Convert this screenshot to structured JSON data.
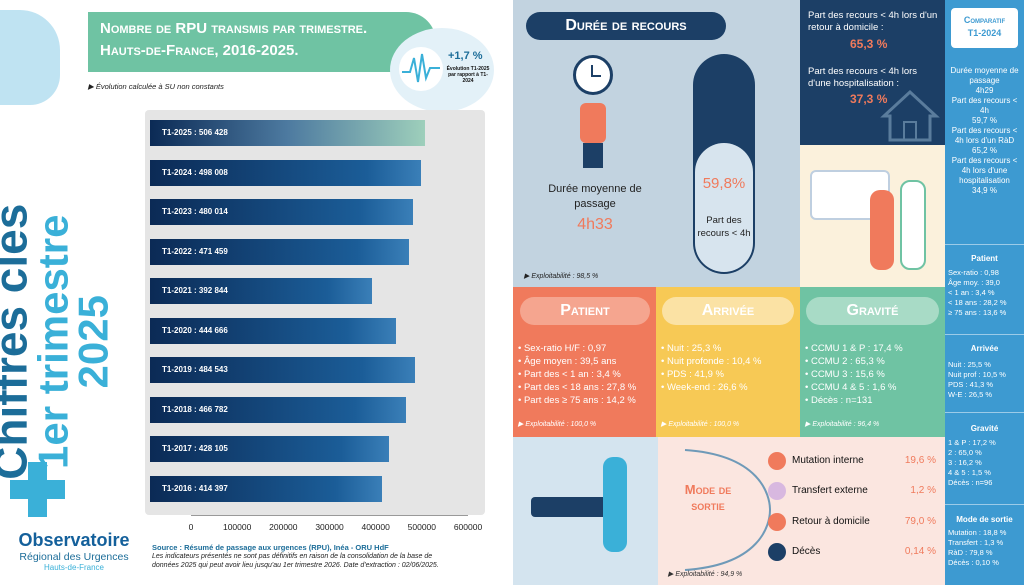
{
  "vertical_title": {
    "line1": "Chiffres clés",
    "line2": "1er trimestre",
    "line3": "2025"
  },
  "banner": {
    "line1": "Nombre de RPU transmis par trimestre.",
    "line2": "Hauts-de-France, 2016-2025."
  },
  "evolution": {
    "value": "+1,7 %",
    "label": "Évolution T1-2025 par rapport à T1-2024"
  },
  "note_su": "Évolution calculée à SU non constants",
  "chart_data": {
    "type": "bar",
    "orientation": "horizontal",
    "categories": [
      "T1-2025",
      "T1-2024",
      "T1-2023",
      "T1-2022",
      "T1-2021",
      "T1-2020",
      "T1-2019",
      "T1-2018",
      "T1-2017",
      "T1-2016"
    ],
    "labels": [
      "T1-2025 : 506 428",
      "T1-2024 : 498 008",
      "T1-2023 : 480 014",
      "T1-2022 : 471 459",
      "T1-2021 : 392 844",
      "T1-2020 : 444 666",
      "T1-2019 : 484 543",
      "T1-2018 : 466 782",
      "T1-2017 : 428 105",
      "T1-2016 : 414 397"
    ],
    "values": [
      506428,
      498008,
      480014,
      471459,
      392844,
      444666,
      484543,
      466782,
      428105,
      414397
    ],
    "xlim": [
      0,
      600000
    ],
    "xticks": [
      "0",
      "100000",
      "200000",
      "300000",
      "400000",
      "500000",
      "600000"
    ]
  },
  "source": {
    "title": "Source : Résumé de passage aux urgences (RPU), Inéa - ORU HdF",
    "text": "Les indicateurs présentés ne sont pas définitifs en raison de la consolidation de la base de données 2025 qui peut avoir lieu jusqu'au 1er trimestre 2026. Date d'extraction : 02/06/2025."
  },
  "logo": {
    "line1": "Observatoire",
    "line2": "Régional des Urgences",
    "line3": "Hauts-de-France"
  },
  "duree": {
    "title": "Durée de recours",
    "moy_label": "Durée moyenne de passage",
    "moy_value": "4h33",
    "pct": "59,8%",
    "pct_label": "Part des recours < 4h",
    "expl": "Exploitabilité : 98,5 %",
    "dom_label": "Part des recours < 4h lors d'un retour à domicile :",
    "dom_value": "65,3 %",
    "hosp_label": "Part des recours < 4h lors d'une hospitalisation :",
    "hosp_value": "37,3 %"
  },
  "patient": {
    "title": "Patient",
    "items": [
      "Sex-ratio H/F : 0,97",
      "Âge moyen : 39,5 ans",
      "Part des < 1 an : 3,4 %",
      "Part des < 18 ans : 27,8 %",
      "Part des ≥ 75 ans : 14,2 %"
    ],
    "expl": "Exploitabilité : 100,0 %"
  },
  "arrivee": {
    "title": "Arrivée",
    "items": [
      "Nuit : 25,3 %",
      "Nuit profonde : 10,4 %",
      "PDS : 41,9 %",
      "Week-end : 26,6 %"
    ],
    "expl": "Exploitabilité : 100,0 %"
  },
  "gravite": {
    "title": "Gravité",
    "items": [
      "CCMU 1 & P : 17,4 %",
      "CCMU 2 : 65,3 %",
      "CCMU 3 : 15,6 %",
      "CCMU 4 & 5 : 1,6 %",
      "Décès : n=131"
    ],
    "expl": "Exploitabilité : 96,4 %"
  },
  "sortie": {
    "title1": "Mode de",
    "title2": "sortie",
    "items": [
      {
        "label": "Mutation interne",
        "value": "19,6 %"
      },
      {
        "label": "Transfert externe",
        "value": "1,2 %"
      },
      {
        "label": "Retour à domicile",
        "value": "79,0 %"
      },
      {
        "label": "Décès",
        "value": "0,14 %"
      }
    ],
    "expl": "Exploitabilité : 94,9 %"
  },
  "sidebar": {
    "title1": "Comparatif",
    "title2": "T1-2024",
    "duree": [
      "Durée moyenne de passage",
      "4h29",
      "Part des recours < 4h",
      "59,7 %",
      "Part des recours < 4h lors d'un RàD",
      "65,2 %",
      "Part des recours < 4h lors d'une hospitalisation",
      "34,9 %"
    ],
    "patient_title": "Patient",
    "patient": [
      [
        "Sex-ratio :",
        "0,98"
      ],
      [
        "Âge moy. :",
        "39,0"
      ],
      [
        "< 1 an :",
        "3,4 %"
      ],
      [
        "< 18 ans :",
        "28,2 %"
      ],
      [
        "≥ 75 ans :",
        "13,6 %"
      ]
    ],
    "arrivee_title": "Arrivée",
    "arrivee": [
      [
        "Nuit :",
        "25,5 %"
      ],
      [
        "Nuit prof :",
        "10,5 %"
      ],
      [
        "PDS :",
        "41,3 %"
      ],
      [
        "W-E :",
        "26,5 %"
      ]
    ],
    "gravite_title": "Gravité",
    "gravite": [
      [
        "1 & P :",
        "17,2 %"
      ],
      [
        "2 :",
        "65,0 %"
      ],
      [
        "3 :",
        "16,2 %"
      ],
      [
        "4 & 5 :",
        "1,5 %"
      ],
      [
        "Décès :",
        "n=96"
      ]
    ],
    "sortie_title": "Mode de sortie",
    "sortie": [
      [
        "Mutation :",
        "18,8 %"
      ],
      [
        "Transfert :",
        "1,3 %"
      ],
      [
        "RàD :",
        "79,8 %"
      ],
      [
        "Décès :",
        "0,10 %"
      ]
    ]
  }
}
